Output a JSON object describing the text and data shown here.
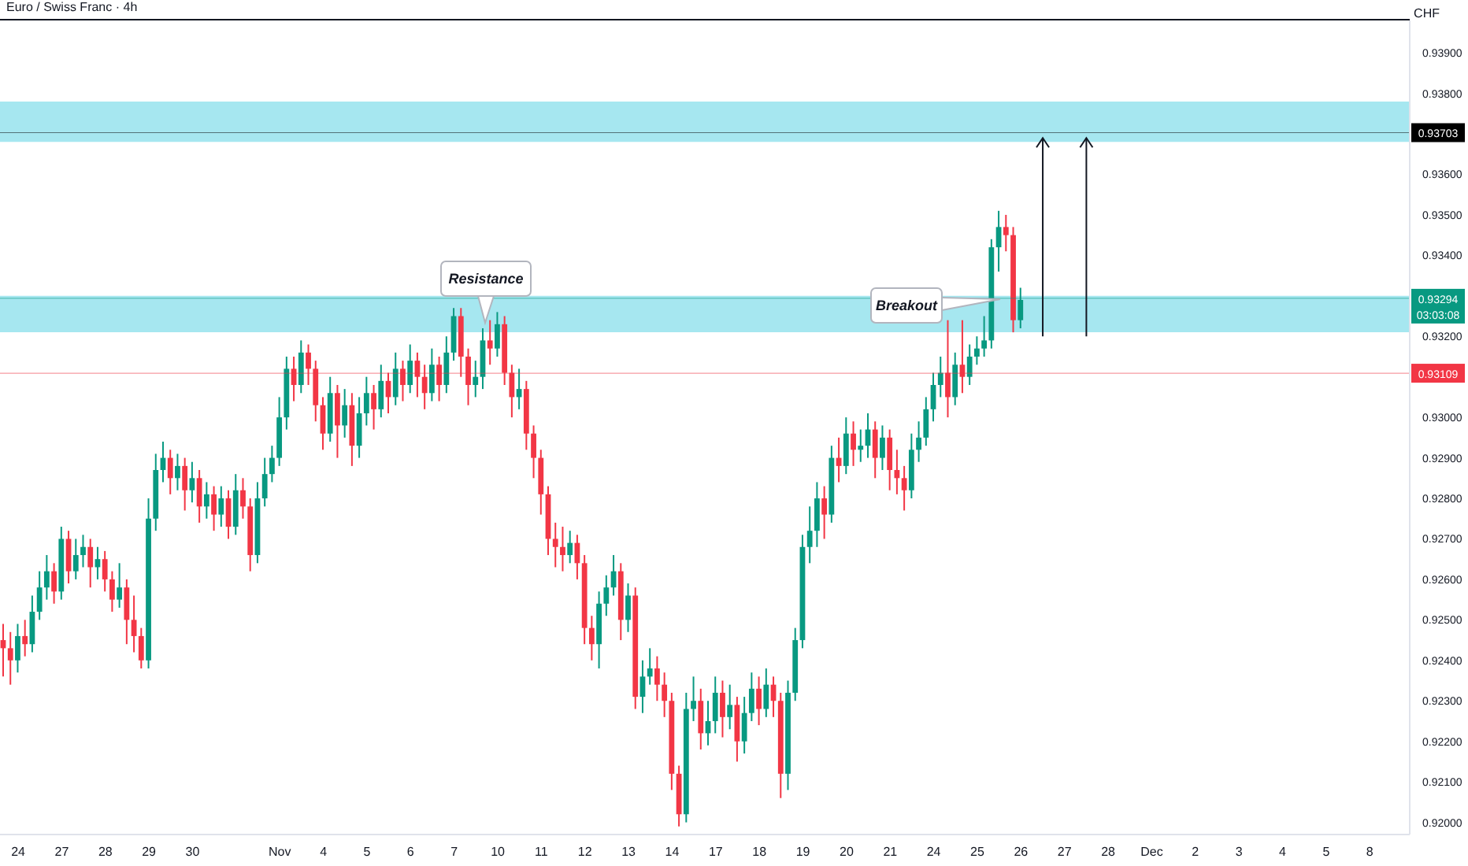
{
  "chart_data": {
    "type": "candlestick",
    "title": "Euro / Swiss Franc · 4h",
    "ylabel": "CHF",
    "categories": [
      null,
      null,
      "24",
      null,
      null,
      null,
      null,
      null,
      "27",
      null,
      null,
      null,
      null,
      null,
      "28",
      null,
      null,
      null,
      null,
      null,
      "29",
      null,
      null,
      null,
      null,
      null,
      "30",
      null,
      null,
      null,
      null,
      null,
      null,
      null,
      null,
      null,
      null,
      null,
      "Nov",
      null,
      null,
      null,
      null,
      null,
      "4",
      null,
      null,
      null,
      null,
      null,
      "5",
      null,
      null,
      null,
      null,
      null,
      "6",
      null,
      null,
      null,
      null,
      null,
      "7",
      null,
      null,
      null,
      null,
      null,
      "10",
      null,
      null,
      null,
      null,
      null,
      "11",
      null,
      null,
      null,
      null,
      null,
      "12",
      null,
      null,
      null,
      null,
      null,
      "13",
      null,
      null,
      null,
      null,
      null,
      "14",
      null,
      null,
      null,
      null,
      null,
      "17",
      null,
      null,
      null,
      null,
      null,
      "18",
      null,
      null,
      null,
      null,
      null,
      "19",
      null,
      null,
      null,
      null,
      null,
      "20",
      null,
      null,
      null,
      null,
      null,
      "21",
      null,
      null,
      null,
      null,
      null,
      "24",
      null,
      null,
      null,
      null,
      null,
      "25",
      null,
      null,
      null,
      null,
      null,
      "26",
      null,
      null,
      null,
      null,
      null,
      "27",
      null,
      null,
      null,
      null,
      null,
      "28",
      null,
      null,
      null,
      null,
      null,
      "Dec",
      null,
      null,
      null,
      null,
      null,
      "2",
      null,
      null,
      null,
      null,
      null,
      "3",
      null,
      null,
      null,
      null,
      null,
      "4",
      null,
      null,
      null,
      null,
      null,
      "5",
      null,
      null,
      null,
      null,
      null,
      "8",
      null,
      null,
      null,
      null,
      null
    ],
    "ohlc": [
      [
        0.9245,
        0.9249,
        0.9236,
        0.9243
      ],
      [
        0.9243,
        0.9247,
        0.9234,
        0.924
      ],
      [
        0.924,
        0.9249,
        0.9237,
        0.9246
      ],
      [
        0.9246,
        0.925,
        0.9241,
        0.9244
      ],
      [
        0.9244,
        0.9256,
        0.9242,
        0.9252
      ],
      [
        0.9252,
        0.9262,
        0.925,
        0.9258
      ],
      [
        0.9258,
        0.9266,
        0.9255,
        0.9262
      ],
      [
        0.9262,
        0.9264,
        0.9254,
        0.9257
      ],
      [
        0.9257,
        0.9273,
        0.9255,
        0.927
      ],
      [
        0.927,
        0.9272,
        0.9259,
        0.9262
      ],
      [
        0.9262,
        0.927,
        0.926,
        0.9266
      ],
      [
        0.9266,
        0.9271,
        0.9263,
        0.9268
      ],
      [
        0.9268,
        0.927,
        0.9258,
        0.9263
      ],
      [
        0.9263,
        0.9268,
        0.926,
        0.9265
      ],
      [
        0.9265,
        0.9267,
        0.9257,
        0.926
      ],
      [
        0.926,
        0.9262,
        0.9252,
        0.9255
      ],
      [
        0.9255,
        0.9264,
        0.9253,
        0.9258
      ],
      [
        0.9258,
        0.926,
        0.9244,
        0.925
      ],
      [
        0.925,
        0.9256,
        0.9242,
        0.9246
      ],
      [
        0.9246,
        0.9248,
        0.9238,
        0.924
      ],
      [
        0.924,
        0.928,
        0.9238,
        0.9275
      ],
      [
        0.9275,
        0.9291,
        0.9272,
        0.9287
      ],
      [
        0.9287,
        0.9294,
        0.9284,
        0.929
      ],
      [
        0.929,
        0.9292,
        0.9281,
        0.9285
      ],
      [
        0.9285,
        0.9291,
        0.9282,
        0.9288
      ],
      [
        0.9288,
        0.929,
        0.9277,
        0.9282
      ],
      [
        0.9282,
        0.9289,
        0.9279,
        0.9285
      ],
      [
        0.9285,
        0.9287,
        0.9274,
        0.9278
      ],
      [
        0.9278,
        0.9284,
        0.9275,
        0.9281
      ],
      [
        0.9281,
        0.9283,
        0.9272,
        0.9276
      ],
      [
        0.9276,
        0.9283,
        0.9273,
        0.928
      ],
      [
        0.928,
        0.9282,
        0.927,
        0.9273
      ],
      [
        0.9273,
        0.9286,
        0.9271,
        0.9282
      ],
      [
        0.9282,
        0.9285,
        0.9275,
        0.9278
      ],
      [
        0.9278,
        0.928,
        0.9262,
        0.9266
      ],
      [
        0.9266,
        0.9284,
        0.9264,
        0.928
      ],
      [
        0.928,
        0.929,
        0.9278,
        0.9286
      ],
      [
        0.9286,
        0.9293,
        0.9284,
        0.929
      ],
      [
        0.929,
        0.9305,
        0.9288,
        0.93
      ],
      [
        0.93,
        0.9315,
        0.9297,
        0.9312
      ],
      [
        0.9312,
        0.9315,
        0.9304,
        0.9308
      ],
      [
        0.9308,
        0.9319,
        0.9306,
        0.9316
      ],
      [
        0.9316,
        0.9318,
        0.9308,
        0.9312
      ],
      [
        0.9312,
        0.9314,
        0.9299,
        0.9303
      ],
      [
        0.9303,
        0.9305,
        0.9292,
        0.9296
      ],
      [
        0.9296,
        0.931,
        0.9294,
        0.9306
      ],
      [
        0.9306,
        0.9308,
        0.929,
        0.9298
      ],
      [
        0.9298,
        0.9307,
        0.9295,
        0.9303
      ],
      [
        0.9303,
        0.9306,
        0.9288,
        0.9293
      ],
      [
        0.9293,
        0.9305,
        0.929,
        0.9301
      ],
      [
        0.9301,
        0.931,
        0.9298,
        0.9306
      ],
      [
        0.9306,
        0.9308,
        0.9297,
        0.9302
      ],
      [
        0.9302,
        0.9313,
        0.93,
        0.9309
      ],
      [
        0.9309,
        0.9311,
        0.9301,
        0.9305
      ],
      [
        0.9305,
        0.9316,
        0.9303,
        0.9312
      ],
      [
        0.9312,
        0.9314,
        0.9304,
        0.9308
      ],
      [
        0.9308,
        0.9318,
        0.9306,
        0.9314
      ],
      [
        0.9314,
        0.9316,
        0.9305,
        0.931
      ],
      [
        0.931,
        0.9313,
        0.9302,
        0.9306
      ],
      [
        0.9306,
        0.9317,
        0.9304,
        0.9313
      ],
      [
        0.9313,
        0.9315,
        0.9304,
        0.9308
      ],
      [
        0.9308,
        0.932,
        0.9306,
        0.9316
      ],
      [
        0.9316,
        0.9327,
        0.9314,
        0.9325
      ],
      [
        0.9325,
        0.9327,
        0.931,
        0.9315
      ],
      [
        0.9315,
        0.9317,
        0.9303,
        0.9308
      ],
      [
        0.9308,
        0.9314,
        0.9305,
        0.931
      ],
      [
        0.931,
        0.9322,
        0.9307,
        0.9319
      ],
      [
        0.9319,
        0.9324,
        0.9313,
        0.9317
      ],
      [
        0.9317,
        0.9326,
        0.9315,
        0.9323
      ],
      [
        0.9323,
        0.9325,
        0.9308,
        0.9311
      ],
      [
        0.9311,
        0.9313,
        0.93,
        0.9305
      ],
      [
        0.9305,
        0.9312,
        0.9302,
        0.9307
      ],
      [
        0.9307,
        0.9309,
        0.9292,
        0.9296
      ],
      [
        0.9296,
        0.9298,
        0.9285,
        0.929
      ],
      [
        0.929,
        0.9292,
        0.9276,
        0.9281
      ],
      [
        0.9281,
        0.9283,
        0.9266,
        0.927
      ],
      [
        0.927,
        0.9274,
        0.9263,
        0.9268
      ],
      [
        0.9268,
        0.9273,
        0.9262,
        0.9266
      ],
      [
        0.9266,
        0.9272,
        0.9264,
        0.9269
      ],
      [
        0.9269,
        0.9271,
        0.926,
        0.9264
      ],
      [
        0.9264,
        0.9266,
        0.9244,
        0.9248
      ],
      [
        0.9248,
        0.9251,
        0.924,
        0.9244
      ],
      [
        0.9244,
        0.9257,
        0.9238,
        0.9254
      ],
      [
        0.9254,
        0.9261,
        0.9251,
        0.9258
      ],
      [
        0.9258,
        0.9266,
        0.9256,
        0.9262
      ],
      [
        0.9262,
        0.9264,
        0.9245,
        0.925
      ],
      [
        0.925,
        0.9259,
        0.9247,
        0.9256
      ],
      [
        0.9256,
        0.9258,
        0.9228,
        0.9231
      ],
      [
        0.9231,
        0.924,
        0.9227,
        0.9236
      ],
      [
        0.9236,
        0.9243,
        0.9234,
        0.9238
      ],
      [
        0.9238,
        0.9241,
        0.923,
        0.9234
      ],
      [
        0.9234,
        0.9237,
        0.9226,
        0.923
      ],
      [
        0.923,
        0.9232,
        0.9208,
        0.9212
      ],
      [
        0.9212,
        0.9214,
        0.9199,
        0.9202
      ],
      [
        0.9202,
        0.9232,
        0.92,
        0.9228
      ],
      [
        0.9228,
        0.9236,
        0.9225,
        0.923
      ],
      [
        0.923,
        0.9233,
        0.9218,
        0.9222
      ],
      [
        0.9222,
        0.923,
        0.9219,
        0.9225
      ],
      [
        0.9225,
        0.9236,
        0.9222,
        0.9232
      ],
      [
        0.9232,
        0.9235,
        0.9221,
        0.9226
      ],
      [
        0.9226,
        0.9234,
        0.9223,
        0.9229
      ],
      [
        0.9229,
        0.9231,
        0.9215,
        0.922
      ],
      [
        0.922,
        0.9231,
        0.9217,
        0.9227
      ],
      [
        0.9227,
        0.9237,
        0.9225,
        0.9233
      ],
      [
        0.9233,
        0.9236,
        0.9224,
        0.9228
      ],
      [
        0.9228,
        0.9238,
        0.9226,
        0.9234
      ],
      [
        0.9234,
        0.9236,
        0.9226,
        0.923
      ],
      [
        0.923,
        0.9232,
        0.9206,
        0.9212
      ],
      [
        0.9212,
        0.9235,
        0.9208,
        0.9232
      ],
      [
        0.9232,
        0.9248,
        0.923,
        0.9245
      ],
      [
        0.9245,
        0.9271,
        0.9243,
        0.9268
      ],
      [
        0.9268,
        0.9278,
        0.9264,
        0.9272
      ],
      [
        0.9272,
        0.9284,
        0.9268,
        0.928
      ],
      [
        0.928,
        0.9283,
        0.927,
        0.9276
      ],
      [
        0.9276,
        0.9293,
        0.9274,
        0.929
      ],
      [
        0.929,
        0.9295,
        0.9284,
        0.9288
      ],
      [
        0.9288,
        0.93,
        0.9286,
        0.9296
      ],
      [
        0.9296,
        0.9299,
        0.9288,
        0.9292
      ],
      [
        0.9292,
        0.9297,
        0.9289,
        0.9293
      ],
      [
        0.9293,
        0.9301,
        0.929,
        0.9297
      ],
      [
        0.9297,
        0.9299,
        0.9285,
        0.929
      ],
      [
        0.929,
        0.9298,
        0.9287,
        0.9295
      ],
      [
        0.9295,
        0.9297,
        0.9282,
        0.9287
      ],
      [
        0.9287,
        0.9292,
        0.9281,
        0.9285
      ],
      [
        0.9285,
        0.9288,
        0.9277,
        0.9282
      ],
      [
        0.9282,
        0.9296,
        0.928,
        0.9292
      ],
      [
        0.9292,
        0.9299,
        0.9289,
        0.9295
      ],
      [
        0.9295,
        0.9305,
        0.9293,
        0.9302
      ],
      [
        0.9302,
        0.9311,
        0.9299,
        0.9308
      ],
      [
        0.9308,
        0.9315,
        0.9305,
        0.9311
      ],
      [
        0.9311,
        0.9324,
        0.93,
        0.9305
      ],
      [
        0.9305,
        0.9316,
        0.9303,
        0.9313
      ],
      [
        0.9313,
        0.9324,
        0.9306,
        0.931
      ],
      [
        0.931,
        0.9318,
        0.9308,
        0.9315
      ],
      [
        0.9315,
        0.932,
        0.9313,
        0.9317
      ],
      [
        0.9317,
        0.9325,
        0.9315,
        0.9319
      ],
      [
        0.9319,
        0.9344,
        0.9317,
        0.9342
      ],
      [
        0.9342,
        0.9351,
        0.9336,
        0.9347
      ],
      [
        0.9347,
        0.935,
        0.9341,
        0.9345
      ],
      [
        0.9345,
        0.9347,
        0.9321,
        0.9324
      ],
      [
        0.9324,
        0.9332,
        0.9322,
        0.9329
      ],
      null,
      null,
      null,
      null,
      null,
      null,
      null,
      null,
      null,
      null,
      null,
      null,
      null,
      null,
      null,
      null,
      null,
      null,
      null,
      null,
      null,
      null,
      null,
      null,
      null,
      null,
      null,
      null,
      null,
      null,
      null,
      null,
      null,
      null,
      null,
      null,
      null,
      null,
      null,
      null,
      null,
      null,
      null,
      null,
      null,
      null,
      null,
      null,
      null,
      null,
      null,
      null,
      null
    ],
    "ylim": [
      0.9197,
      0.9398
    ],
    "yticks": [
      {
        "value": 0.92,
        "label": "0.92000"
      },
      {
        "value": 0.921,
        "label": "0.92100"
      },
      {
        "value": 0.922,
        "label": "0.92200"
      },
      {
        "value": 0.923,
        "label": "0.92300"
      },
      {
        "value": 0.924,
        "label": "0.92400"
      },
      {
        "value": 0.925,
        "label": "0.92500"
      },
      {
        "value": 0.926,
        "label": "0.92600"
      },
      {
        "value": 0.927,
        "label": "0.92700"
      },
      {
        "value": 0.928,
        "label": "0.92800"
      },
      {
        "value": 0.929,
        "label": "0.92900"
      },
      {
        "value": 0.93,
        "label": "0.93000"
      },
      {
        "value": 0.932,
        "label": "0.93200"
      },
      {
        "value": 0.934,
        "label": "0.93400"
      },
      {
        "value": 0.935,
        "label": "0.93500"
      },
      {
        "value": 0.936,
        "label": "0.93600"
      },
      {
        "value": 0.938,
        "label": "0.93800"
      },
      {
        "value": 0.939,
        "label": "0.93900"
      }
    ],
    "bands": [
      {
        "axis": "y",
        "from": 0.9368,
        "to": 0.9378,
        "color": "#a6e7f0"
      },
      {
        "axis": "y",
        "from": 0.9321,
        "to": 0.933,
        "color": "#a6e7f0"
      }
    ],
    "ref_lines": [
      {
        "axis": "y",
        "value": 0.93294,
        "label": "0.93294",
        "color": "#089981"
      },
      {
        "axis": "y",
        "value": 0.93703,
        "label": "0.93703",
        "color": "#000000"
      },
      {
        "axis": "y",
        "value": 0.93109,
        "label": "0.93109",
        "color": "#f23645"
      }
    ],
    "annotations": [
      "Resistance",
      "Breakout",
      "03:03:08"
    ]
  }
}
